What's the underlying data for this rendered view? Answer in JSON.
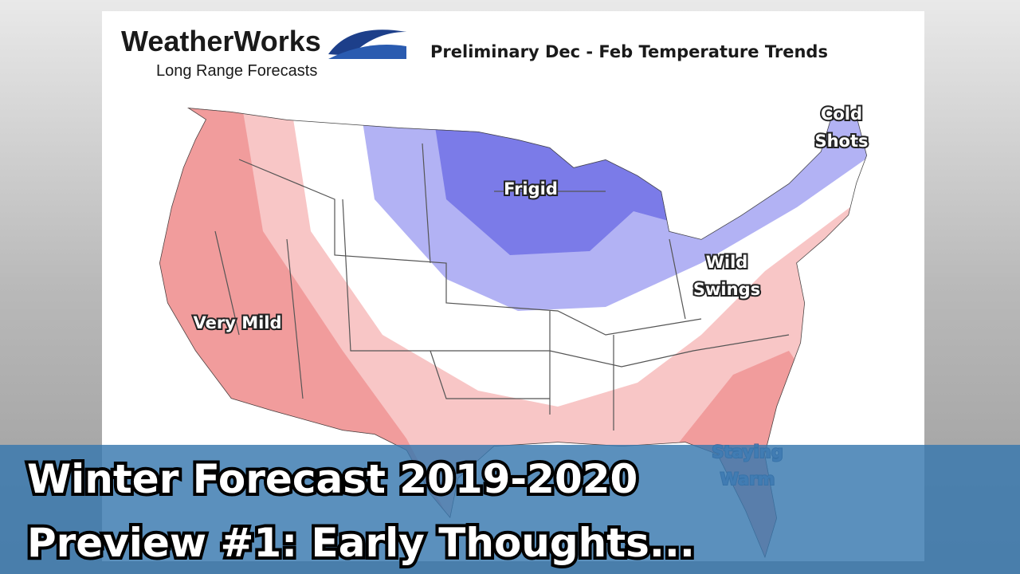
{
  "logo": {
    "name": "WeatherWorks",
    "tagline": "Long Range Forecasts"
  },
  "map": {
    "title": "Preliminary Dec - Feb Temperature Trends",
    "labels": [
      {
        "lines": [
          "Cold",
          "Shots"
        ]
      },
      {
        "lines": [
          "Frigid"
        ]
      },
      {
        "lines": [
          "Wild",
          "Swings"
        ]
      },
      {
        "lines": [
          "Very Mild"
        ]
      },
      {
        "lines": [
          "Staying",
          "Warm"
        ]
      }
    ]
  },
  "banner": {
    "lines": [
      "Winter Forecast 2019-2020",
      "Preview #1: Early Thoughts..."
    ]
  }
}
